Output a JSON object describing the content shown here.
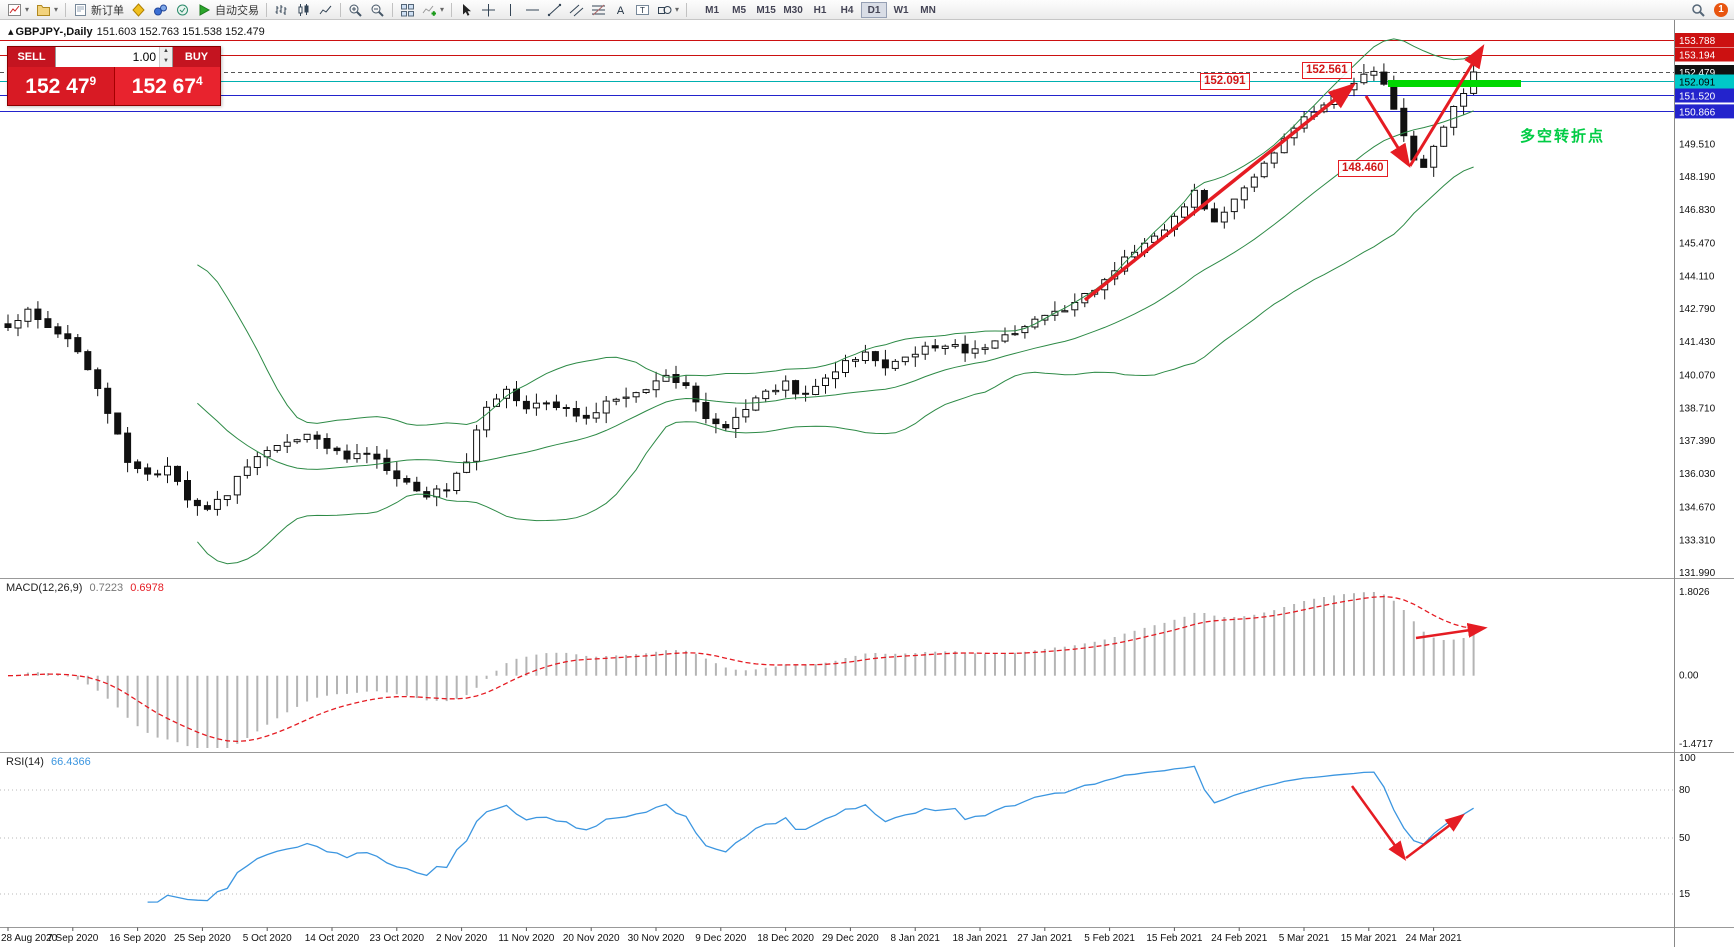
{
  "toolbar": {
    "new_order": "新订单",
    "autotrade": "自动交易",
    "timeframes": [
      "M1",
      "M5",
      "M15",
      "M30",
      "H1",
      "H4",
      "D1",
      "W1",
      "MN"
    ],
    "notification_count": "1"
  },
  "trade_panel": {
    "sell": "SELL",
    "buy": "BUY",
    "volume": "1.00",
    "sell_big": "152 47",
    "sell_sup": "9",
    "buy_big": "152 67",
    "buy_sup": "4"
  },
  "chart": {
    "symbol_marker": "▴",
    "title": "GBPJPY-,Daily",
    "ohlc": "151.603 152.763 151.538 152.479",
    "note": "多空转折点",
    "callouts": [
      "152.091",
      "152.561",
      "148.460"
    ],
    "price_tags": [
      {
        "label": "153.788",
        "price": 153.788,
        "bg": "#cc1111",
        "fg": "#ffffff",
        "line": "#cc1111"
      },
      {
        "label": "153.194",
        "price": 153.194,
        "bg": "#cc1111",
        "fg": "#ffffff",
        "line": "#cc1111"
      },
      {
        "label": "152.479",
        "price": 152.479,
        "bg": "#111111",
        "fg": "#ffffff",
        "line": "#555555",
        "dash": "4,3"
      },
      {
        "label": "152.091",
        "price": 152.091,
        "bg": "#00c8c8",
        "fg": "#000000",
        "line": "#00b0b0"
      },
      {
        "label": "151.520",
        "price": 151.52,
        "bg": "#2323cc",
        "fg": "#ffffff",
        "line": "#2323cc"
      },
      {
        "label": "150.866",
        "price": 150.866,
        "bg": "#2323cc",
        "fg": "#ffffff",
        "line": "#2323cc"
      }
    ],
    "y_ticks": [
      "149.510",
      "148.190",
      "146.830",
      "145.470",
      "144.110",
      "142.790",
      "141.430",
      "140.070",
      "138.710",
      "137.390",
      "136.030",
      "134.670",
      "133.310",
      "131.990"
    ],
    "x_ticks": [
      "28 Aug 2020",
      "7 Sep 2020",
      "16 Sep 2020",
      "25 Sep 2020",
      "5 Oct 2020",
      "14 Oct 2020",
      "23 Oct 2020",
      "2 Nov 2020",
      "11 Nov 2020",
      "20 Nov 2020",
      "30 Nov 2020",
      "9 Dec 2020",
      "18 Dec 2020",
      "29 Dec 2020",
      "8 Jan 2021",
      "18 Jan 2021",
      "27 Jan 2021",
      "5 Feb 2021",
      "15 Feb 2021",
      "24 Feb 2021",
      "5 Mar 2021",
      "15 Mar 2021",
      "24 Mar 2021"
    ]
  },
  "macd": {
    "name": "MACD(12,26,9)",
    "value_main": "0.7223",
    "value_signal": "0.6978",
    "ticks": [
      "1.8026",
      "0.00",
      "-1.4717"
    ]
  },
  "rsi": {
    "name": "RSI(14)",
    "value": "66.4366",
    "ticks": [
      "100",
      "80",
      "50",
      "15"
    ]
  },
  "colors": {
    "annotation_red": "#e51c23",
    "annotation_green": "#00d800",
    "bollinger": "#2d8a46",
    "rsi_line": "#3c96e0",
    "bull": "#ffffff",
    "bear": "#111111"
  },
  "chart_data": {
    "type": "candlestick",
    "symbol": "GBPJPY-",
    "period": "Daily",
    "last_ohlc": {
      "open": 151.603,
      "high": 152.763,
      "low": 151.538,
      "close": 152.479
    },
    "indicators": [
      "Bollinger Bands (20,2)",
      "MACD(12,26,9)",
      "RSI(14)"
    ],
    "levels": [
      153.788,
      153.194,
      152.091,
      151.52,
      150.866
    ],
    "swing_labels": [
      152.091,
      152.561,
      148.46
    ],
    "close_anchors": [
      [
        0,
        141.9
      ],
      [
        2,
        142.7
      ],
      [
        4,
        141.9
      ],
      [
        6,
        141.6
      ],
      [
        8,
        140.2
      ],
      [
        10,
        138.6
      ],
      [
        12,
        136.6
      ],
      [
        14,
        135.9
      ],
      [
        16,
        136.4
      ],
      [
        18,
        135.0
      ],
      [
        20,
        134.6
      ],
      [
        22,
        135.3
      ],
      [
        24,
        136.3
      ],
      [
        26,
        137.0
      ],
      [
        28,
        137.4
      ],
      [
        30,
        137.6
      ],
      [
        32,
        137.2
      ],
      [
        34,
        136.8
      ],
      [
        36,
        136.9
      ],
      [
        38,
        136.3
      ],
      [
        40,
        135.7
      ],
      [
        42,
        135.1
      ],
      [
        44,
        135.5
      ],
      [
        46,
        136.6
      ],
      [
        48,
        138.8
      ],
      [
        50,
        139.6
      ],
      [
        52,
        138.7
      ],
      [
        54,
        139.0
      ],
      [
        56,
        138.6
      ],
      [
        58,
        138.3
      ],
      [
        60,
        138.9
      ],
      [
        62,
        139.3
      ],
      [
        64,
        139.5
      ],
      [
        66,
        140.1
      ],
      [
        68,
        139.6
      ],
      [
        70,
        138.4
      ],
      [
        72,
        137.9
      ],
      [
        74,
        138.8
      ],
      [
        76,
        139.5
      ],
      [
        78,
        139.7
      ],
      [
        80,
        139.2
      ],
      [
        82,
        139.9
      ],
      [
        84,
        140.7
      ],
      [
        86,
        140.9
      ],
      [
        88,
        140.5
      ],
      [
        90,
        140.9
      ],
      [
        92,
        141.2
      ],
      [
        94,
        141.4
      ],
      [
        96,
        141.0
      ],
      [
        98,
        141.2
      ],
      [
        100,
        141.7
      ],
      [
        102,
        142.1
      ],
      [
        104,
        142.4
      ],
      [
        106,
        142.8
      ],
      [
        108,
        143.3
      ],
      [
        110,
        144.0
      ],
      [
        112,
        144.9
      ],
      [
        114,
        145.6
      ],
      [
        116,
        146.1
      ],
      [
        119,
        147.6
      ],
      [
        121,
        146.3
      ],
      [
        124,
        147.8
      ],
      [
        127,
        149.3
      ],
      [
        130,
        150.5
      ],
      [
        132,
        151.2
      ],
      [
        134,
        151.7
      ],
      [
        136,
        152.3
      ],
      [
        137,
        152.5
      ],
      [
        138,
        152.1
      ],
      [
        139,
        151.0
      ],
      [
        140,
        149.9
      ],
      [
        141,
        149.0
      ],
      [
        142,
        148.6
      ],
      [
        143,
        149.5
      ],
      [
        144,
        150.3
      ],
      [
        145,
        151.1
      ],
      [
        146,
        151.7
      ],
      [
        147,
        152.4
      ]
    ]
  }
}
